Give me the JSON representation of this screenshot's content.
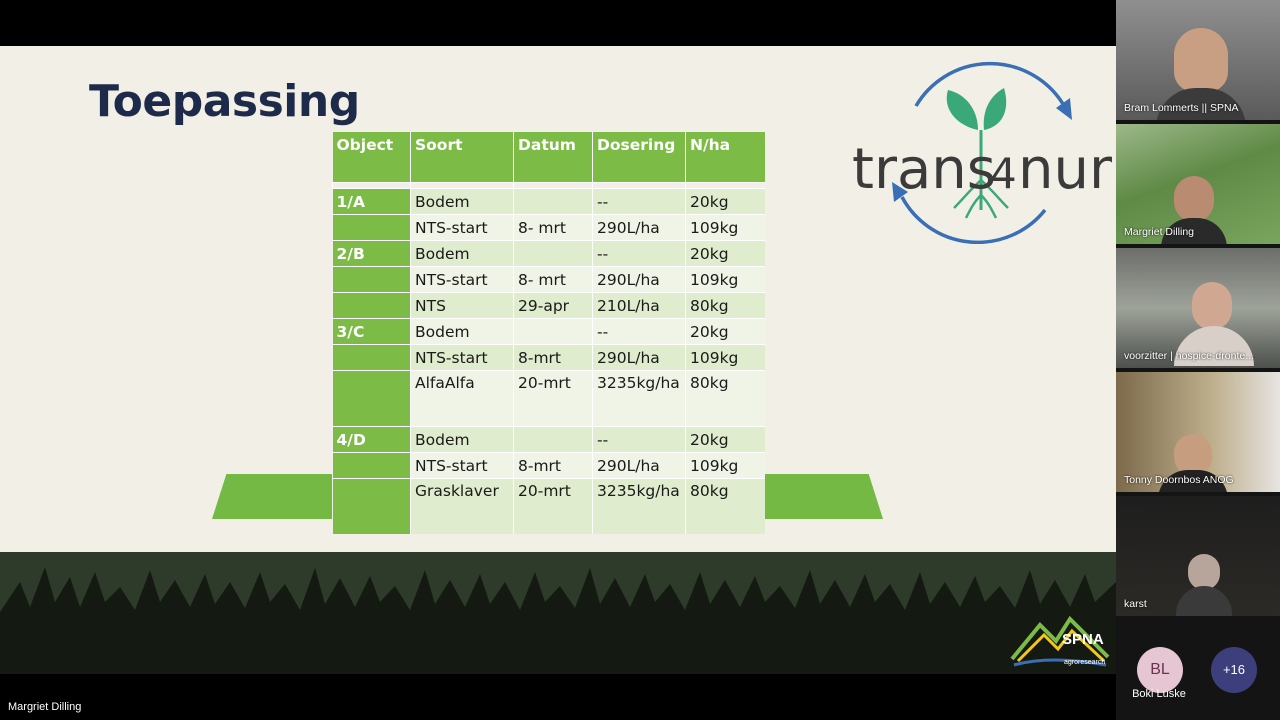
{
  "slide": {
    "title": "Toepassing",
    "logo_text": {
      "left": "trans",
      "number": "4",
      "right": "num"
    },
    "spna_logo": {
      "name": "SPNA",
      "subtitle": "agroresearch"
    },
    "table": {
      "headers": [
        "Object",
        "Soort",
        "Datum",
        "Dosering",
        "N/ha"
      ],
      "rows": [
        {
          "object": "1/A",
          "soort": "Bodem",
          "datum": "",
          "dosering": "--",
          "nha": "20kg"
        },
        {
          "object": "",
          "soort": "NTS-start",
          "datum": "8- mrt",
          "dosering": "290L/ha",
          "nha": "109kg"
        },
        {
          "object": "2/B",
          "soort": "Bodem",
          "datum": "",
          "dosering": "--",
          "nha": "20kg"
        },
        {
          "object": "",
          "soort": "NTS-start",
          "datum": "8- mrt",
          "dosering": "290L/ha",
          "nha": "109kg"
        },
        {
          "object": "",
          "soort": "NTS",
          "datum": "29-apr",
          "dosering": "210L/ha",
          "nha": "80kg"
        },
        {
          "object": "3/C",
          "soort": "Bodem",
          "datum": "",
          "dosering": "--",
          "nha": "20kg"
        },
        {
          "object": "",
          "soort": "NTS-start",
          "datum": "8-mrt",
          "dosering": "290L/ha",
          "nha": "109kg"
        },
        {
          "object": "",
          "soort": "AlfaAlfa",
          "datum": "20-mrt",
          "dosering": "3235kg/ha",
          "nha": "80kg"
        },
        {
          "object": "4/D",
          "soort": "Bodem",
          "datum": "",
          "dosering": "--",
          "nha": "20kg"
        },
        {
          "object": "",
          "soort": "NTS-start",
          "datum": "8-mrt",
          "dosering": "290L/ha",
          "nha": "109kg"
        },
        {
          "object": "",
          "soort": "Grasklaver",
          "datum": "20-mrt",
          "dosering": "3235kg/ha",
          "nha": "80kg"
        }
      ]
    }
  },
  "presenter_label": "Margriet Dilling",
  "participants": [
    {
      "name": "Bram Lommerts || SPNA"
    },
    {
      "name": "Margriet Dilling"
    },
    {
      "name": "voorzitter | hospice-dronte..."
    },
    {
      "name": "Tonny Doornbos ANOG"
    },
    {
      "name": "karst"
    }
  ],
  "avatars": {
    "initials": "BL",
    "initials_name": "Boki Luske",
    "more_count": "+16"
  },
  "colors": {
    "slide_bg": "#f2f0e6",
    "title": "#1e2a4a",
    "table_green": "#7dbb47",
    "logo_blue": "#3a6fb5",
    "logo_green": "#3aa878",
    "logo_text": "#3b3b3b"
  }
}
